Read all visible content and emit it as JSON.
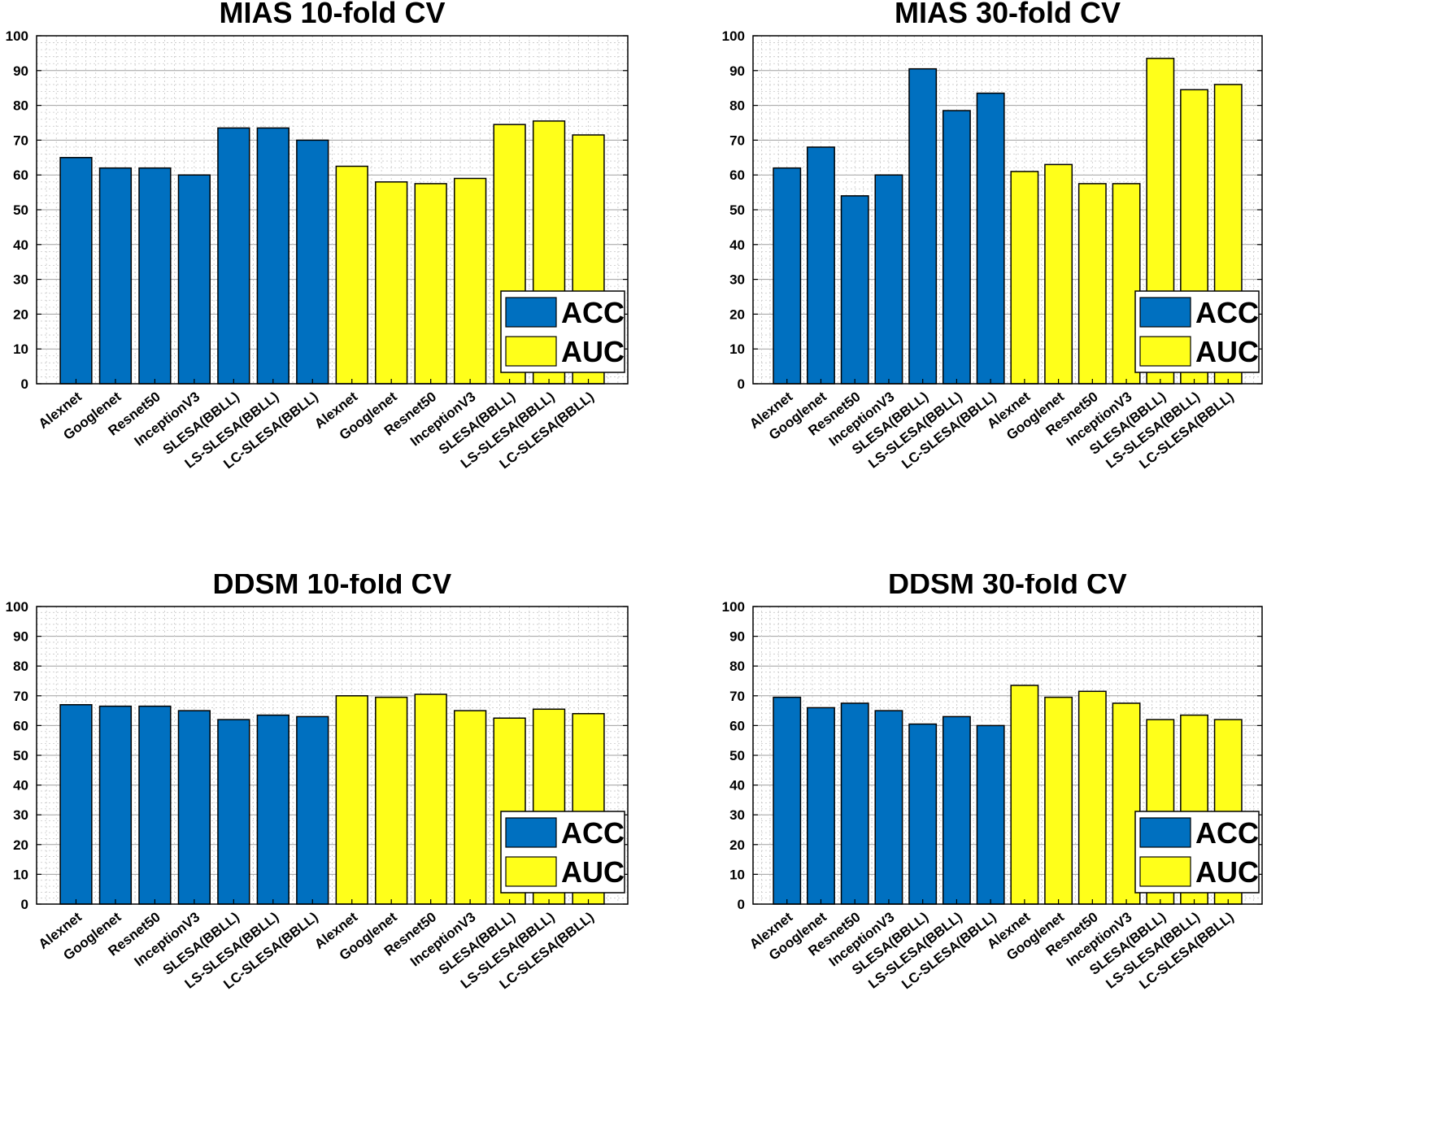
{
  "figure": {
    "layout": "2x2 grid"
  },
  "colors": {
    "acc": "#0070C0",
    "auc": "#FFFF1A",
    "grid_minor": "#c8c8c8",
    "grid_major": "#a0a0a0"
  },
  "chart_data": [
    {
      "type": "bar",
      "title": "MIAS 10-fold CV",
      "xlabel": "",
      "ylabel": "",
      "ylim": [
        0,
        100
      ],
      "yticks": [
        "0",
        "10",
        "20",
        "30",
        "40",
        "50",
        "60",
        "70",
        "80",
        "90",
        "100"
      ],
      "grid": true,
      "legend": {
        "position": "bottom-right",
        "entries": [
          "ACC",
          "AUC"
        ]
      },
      "categories": [
        "Alexnet",
        "Googlenet",
        "Resnet50",
        "InceptionV3",
        "SLESA(BBLL)",
        "LS-SLESA(BBLL)",
        "LC-SLESA(BBLL)",
        "Alexnet",
        "Googlenet",
        "Resnet50",
        "InceptionV3",
        "SLESA(BBLL)",
        "LS-SLESA(BBLL)",
        "LC-SLESA(BBLL)"
      ],
      "series_of_bar": [
        "ACC",
        "ACC",
        "ACC",
        "ACC",
        "ACC",
        "ACC",
        "ACC",
        "AUC",
        "AUC",
        "AUC",
        "AUC",
        "AUC",
        "AUC",
        "AUC"
      ],
      "values": [
        65,
        62,
        62,
        60,
        73.5,
        73.5,
        70,
        62.5,
        58,
        57.5,
        59,
        74.5,
        75.5,
        71.5
      ]
    },
    {
      "type": "bar",
      "title": "MIAS 30-fold CV",
      "xlabel": "",
      "ylabel": "",
      "ylim": [
        0,
        100
      ],
      "yticks": [
        "0",
        "10",
        "20",
        "30",
        "40",
        "50",
        "60",
        "70",
        "80",
        "90",
        "100"
      ],
      "grid": true,
      "legend": {
        "position": "bottom-right",
        "entries": [
          "ACC",
          "AUC"
        ]
      },
      "categories": [
        "Alexnet",
        "Googlenet",
        "Resnet50",
        "InceptionV3",
        "SLESA(BBLL)",
        "LS-SLESA(BBLL)",
        "LC-SLESA(BBLL)",
        "Alexnet",
        "Googlenet",
        "Resnet50",
        "InceptionV3",
        "SLESA(BBLL)",
        "LS-SLESA(BBLL)",
        "LC-SLESA(BBLL)"
      ],
      "series_of_bar": [
        "ACC",
        "ACC",
        "ACC",
        "ACC",
        "ACC",
        "ACC",
        "ACC",
        "AUC",
        "AUC",
        "AUC",
        "AUC",
        "AUC",
        "AUC",
        "AUC"
      ],
      "values": [
        62,
        68,
        54,
        60,
        90.5,
        78.5,
        83.5,
        61,
        63,
        57.5,
        57.5,
        93.5,
        84.5,
        86
      ]
    },
    {
      "type": "bar",
      "title": "DDSM 10-fold CV",
      "xlabel": "",
      "ylabel": "",
      "ylim": [
        0,
        100
      ],
      "yticks": [
        "0",
        "10",
        "20",
        "30",
        "40",
        "50",
        "60",
        "70",
        "80",
        "90",
        "100"
      ],
      "grid": true,
      "legend": {
        "position": "bottom-right",
        "entries": [
          "ACC",
          "AUC"
        ]
      },
      "categories": [
        "Alexnet",
        "Googlenet",
        "Resnet50",
        "InceptionV3",
        "SLESA(BBLL)",
        "LS-SLESA(BBLL)",
        "LC-SLESA(BBLL)",
        "Alexnet",
        "Googlenet",
        "Resnet50",
        "InceptionV3",
        "SLESA(BBLL)",
        "LS-SLESA(BBLL)",
        "LC-SLESA(BBLL)"
      ],
      "series_of_bar": [
        "ACC",
        "ACC",
        "ACC",
        "ACC",
        "ACC",
        "ACC",
        "ACC",
        "AUC",
        "AUC",
        "AUC",
        "AUC",
        "AUC",
        "AUC",
        "AUC"
      ],
      "values": [
        67,
        66.5,
        66.5,
        65,
        62,
        63.5,
        63,
        70,
        69.5,
        70.5,
        65,
        62.5,
        65.5,
        64
      ]
    },
    {
      "type": "bar",
      "title": "DDSM 30-fold CV",
      "xlabel": "",
      "ylabel": "",
      "ylim": [
        0,
        100
      ],
      "yticks": [
        "0",
        "10",
        "20",
        "30",
        "40",
        "50",
        "60",
        "70",
        "80",
        "90",
        "100"
      ],
      "grid": true,
      "legend": {
        "position": "bottom-right",
        "entries": [
          "ACC",
          "AUC"
        ]
      },
      "categories": [
        "Alexnet",
        "Googlenet",
        "Resnet50",
        "InceptionV3",
        "SLESA(BBLL)",
        "LS-SLESA(BBLL)",
        "LC-SLESA(BBLL)",
        "Alexnet",
        "Googlenet",
        "Resnet50",
        "InceptionV3",
        "SLESA(BBLL)",
        "LS-SLESA(BBLL)",
        "LC-SLESA(BBLL)"
      ],
      "series_of_bar": [
        "ACC",
        "ACC",
        "ACC",
        "ACC",
        "ACC",
        "ACC",
        "ACC",
        "AUC",
        "AUC",
        "AUC",
        "AUC",
        "AUC",
        "AUC",
        "AUC"
      ],
      "values": [
        69.5,
        66,
        67.5,
        65,
        60.5,
        63,
        60,
        73.5,
        69.5,
        71.5,
        67.5,
        62,
        63.5,
        62
      ]
    }
  ]
}
